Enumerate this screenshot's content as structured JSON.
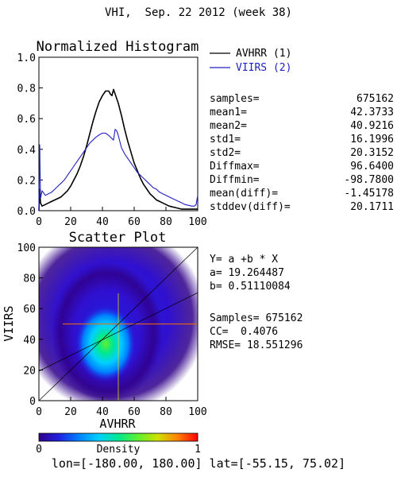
{
  "title": "VHI,  Sep. 22 2012 (week 38)",
  "chart_data": [
    {
      "type": "line",
      "title": "Normalized Histogram",
      "xlim": [
        0,
        100
      ],
      "ylim": [
        0,
        1
      ],
      "xticks": [
        0,
        20,
        40,
        60,
        80,
        100
      ],
      "yticks": [
        0.0,
        0.2,
        0.4,
        0.6,
        0.8,
        1.0
      ],
      "xtick_labels": [
        "0",
        "20",
        "40",
        "60",
        "80",
        "100"
      ],
      "ytick_labels": [
        "0.0",
        "0.2",
        "0.4",
        "0.6",
        "0.8",
        "1.0"
      ],
      "legend_position": "right of plot, top",
      "series": [
        {
          "name": "AVHRR (1)",
          "color": "#000000",
          "x": [
            0,
            0.5,
            1,
            2,
            4,
            6,
            8,
            10,
            12,
            14,
            16,
            18,
            20,
            22,
            24,
            26,
            28,
            30,
            32,
            34,
            36,
            38,
            40,
            42,
            44,
            45,
            46,
            47,
            48,
            50,
            52,
            54,
            56,
            58,
            60,
            62,
            64,
            66,
            68,
            70,
            72,
            74,
            76,
            78,
            80,
            82,
            84,
            86,
            88,
            90,
            92,
            94,
            96,
            98,
            99,
            100
          ],
          "y": [
            0.0,
            0.14,
            0.05,
            0.03,
            0.04,
            0.05,
            0.06,
            0.07,
            0.08,
            0.09,
            0.11,
            0.13,
            0.16,
            0.2,
            0.24,
            0.29,
            0.35,
            0.42,
            0.5,
            0.58,
            0.65,
            0.71,
            0.75,
            0.78,
            0.78,
            0.76,
            0.75,
            0.79,
            0.76,
            0.7,
            0.62,
            0.53,
            0.45,
            0.38,
            0.31,
            0.26,
            0.21,
            0.17,
            0.14,
            0.11,
            0.09,
            0.07,
            0.06,
            0.05,
            0.04,
            0.03,
            0.025,
            0.02,
            0.015,
            0.01,
            0.01,
            0.01,
            0.01,
            0.01,
            0.01,
            0.01
          ]
        },
        {
          "name": "VIIRS (2)",
          "color": "#2020c0",
          "x": [
            0,
            0.5,
            1,
            2,
            4,
            6,
            8,
            10,
            12,
            14,
            16,
            18,
            20,
            22,
            24,
            26,
            28,
            30,
            32,
            34,
            36,
            38,
            40,
            42,
            44,
            46,
            47,
            48,
            49,
            50,
            52,
            54,
            56,
            58,
            60,
            62,
            64,
            66,
            68,
            70,
            72,
            74,
            76,
            78,
            80,
            82,
            84,
            86,
            88,
            90,
            92,
            94,
            96,
            98,
            99,
            100
          ],
          "y": [
            0.0,
            0.43,
            0.08,
            0.13,
            0.1,
            0.11,
            0.12,
            0.14,
            0.16,
            0.18,
            0.2,
            0.23,
            0.26,
            0.29,
            0.32,
            0.35,
            0.38,
            0.41,
            0.44,
            0.46,
            0.48,
            0.495,
            0.505,
            0.505,
            0.49,
            0.47,
            0.46,
            0.53,
            0.52,
            0.49,
            0.41,
            0.37,
            0.34,
            0.31,
            0.28,
            0.25,
            0.23,
            0.21,
            0.19,
            0.17,
            0.15,
            0.14,
            0.12,
            0.11,
            0.1,
            0.09,
            0.08,
            0.07,
            0.06,
            0.05,
            0.04,
            0.035,
            0.03,
            0.03,
            0.04,
            0.1
          ]
        }
      ],
      "stats": [
        {
          "label": "samples=",
          "value": "675162"
        },
        {
          "label": "mean1=",
          "value": "42.3733"
        },
        {
          "label": "mean2=",
          "value": "40.9216"
        },
        {
          "label": "std1=",
          "value": "16.1996"
        },
        {
          "label": "std2=",
          "value": "20.3152"
        },
        {
          "label": "Diffmax=",
          "value": "96.6400"
        },
        {
          "label": "Diffmin=",
          "value": "-98.7800"
        },
        {
          "label": "mean(diff)=",
          "value": "-1.45178"
        },
        {
          "label": "stddev(diff)=",
          "value": "20.1711"
        }
      ]
    },
    {
      "type": "scatter",
      "title": "Scatter Plot",
      "xlabel": "AVHRR",
      "ylabel": "VIIRS",
      "xlim": [
        0,
        100
      ],
      "ylim": [
        0,
        100
      ],
      "xticks": [
        0,
        20,
        40,
        60,
        80,
        100
      ],
      "yticks": [
        0,
        20,
        40,
        60,
        80,
        100
      ],
      "xtick_labels": [
        "0",
        "20",
        "40",
        "60",
        "80",
        "100"
      ],
      "ytick_labels": [
        "0",
        "20",
        "40",
        "60",
        "80",
        "100"
      ],
      "density_center": [
        42,
        37
      ],
      "regression": {
        "a": 19.264487,
        "b": 0.51110084
      },
      "regression_text": [
        "Y= a +b * X",
        "a= 19.264487",
        "b= 0.51110084"
      ],
      "summary_text": [
        "Samples= 675162",
        "CC=  0.4076",
        "RMSE= 18.551296"
      ],
      "colorbar": {
        "label": "Density",
        "min_label": "0",
        "max_label": "1",
        "colors": [
          "#30008a",
          "#2020e0",
          "#0080ff",
          "#00d0ff",
          "#00e890",
          "#60f030",
          "#d0e000",
          "#ff8000",
          "#ff0000"
        ]
      }
    }
  ],
  "footer": "lon=[-180.00, 180.00] lat=[-55.15, 75.02]"
}
